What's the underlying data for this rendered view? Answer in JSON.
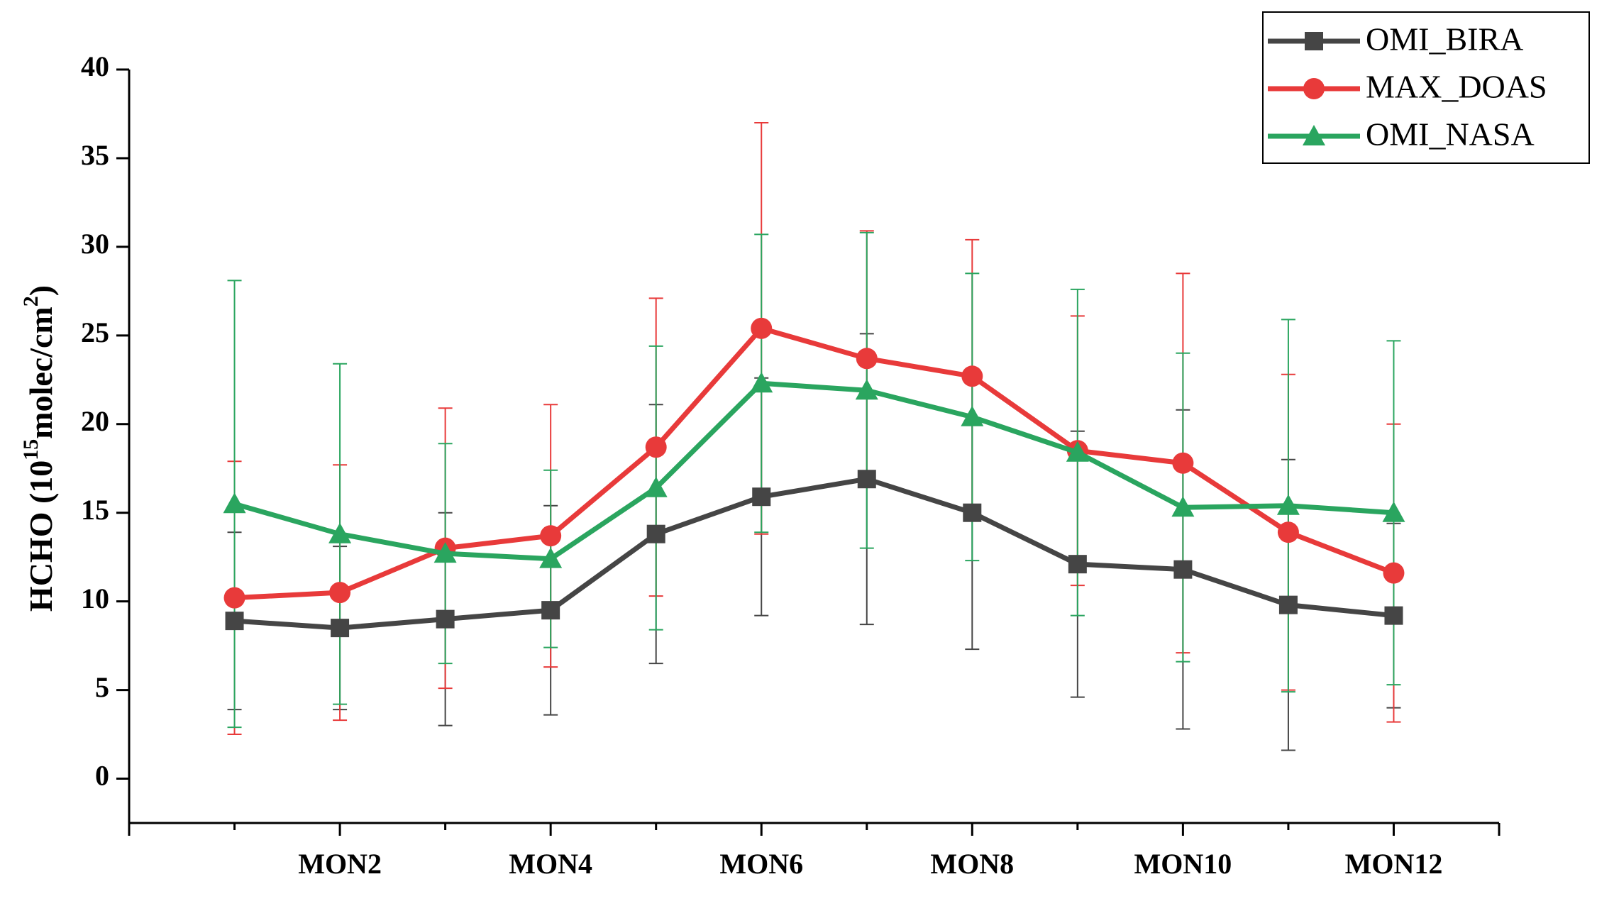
{
  "chart_data": {
    "type": "line",
    "ylabel": [
      "HCHO (10",
      "15",
      "molec/cm",
      "2",
      ")"
    ],
    "categories": [
      null,
      "MON2",
      null,
      "MON4",
      null,
      "MON6",
      null,
      "MON8",
      null,
      "MON10",
      null,
      "MON12"
    ],
    "ylim": [
      -2.5,
      40
    ],
    "yticks": [
      0,
      5,
      10,
      15,
      20,
      25,
      30,
      35,
      40
    ],
    "legend": "top-right",
    "series": [
      {
        "name": "OMI_BIRA",
        "color": "#454545",
        "marker": "square",
        "values": [
          8.9,
          8.5,
          9.0,
          9.5,
          13.8,
          15.9,
          16.9,
          15.0,
          12.1,
          11.8,
          9.8,
          9.2
        ],
        "errors": [
          5.0,
          4.6,
          6.0,
          5.9,
          7.3,
          6.7,
          8.2,
          7.7,
          7.5,
          9.0,
          8.2,
          5.2
        ]
      },
      {
        "name": "MAX_DOAS",
        "color": "#e83a3a",
        "marker": "circle",
        "values": [
          10.2,
          10.5,
          13.0,
          13.7,
          18.7,
          25.4,
          23.7,
          22.7,
          18.5,
          17.8,
          13.9,
          11.6
        ],
        "errors": [
          7.7,
          7.2,
          7.9,
          7.4,
          8.4,
          11.6,
          7.2,
          7.7,
          7.6,
          10.7,
          8.9,
          8.4
        ]
      },
      {
        "name": "OMI_NASA",
        "color": "#2aa55f",
        "marker": "triangle",
        "values": [
          15.5,
          13.8,
          12.7,
          12.4,
          16.4,
          22.3,
          21.9,
          20.4,
          18.4,
          15.3,
          15.4,
          15.0
        ],
        "errors": [
          12.6,
          9.6,
          6.2,
          5.0,
          8.0,
          8.4,
          8.9,
          8.1,
          9.2,
          8.7,
          10.5,
          9.7
        ]
      }
    ]
  }
}
